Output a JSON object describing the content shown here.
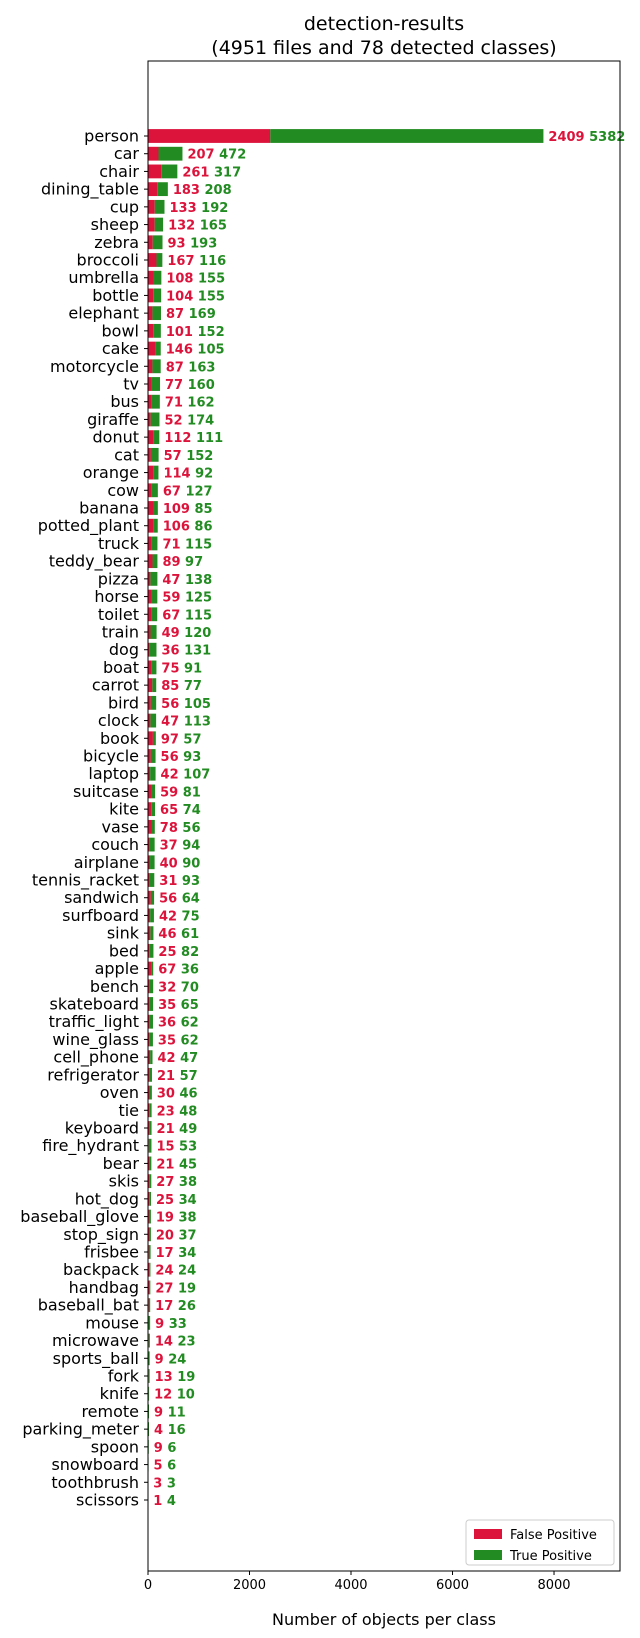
{
  "chart_data": {
    "type": "bar",
    "orientation": "horizontal",
    "stacked": true,
    "title": "detection-results",
    "subtitle": "(4951 files and 78 detected classes)",
    "xlabel": "Number of objects per class",
    "ylabel": "",
    "xlim": [
      0,
      9300
    ],
    "x_ticks": [
      0,
      2000,
      4000,
      6000,
      8000
    ],
    "grid": false,
    "legend_position": "lower-right",
    "colors": {
      "false_positive": "#dc143c",
      "true_positive": "#228b22"
    },
    "series": [
      {
        "name": "False Positive",
        "color": "#dc143c"
      },
      {
        "name": "True Positive",
        "color": "#228b22"
      }
    ],
    "categories": [
      "person",
      "car",
      "chair",
      "dining_table",
      "cup",
      "sheep",
      "zebra",
      "broccoli",
      "umbrella",
      "bottle",
      "elephant",
      "bowl",
      "cake",
      "motorcycle",
      "tv",
      "bus",
      "giraffe",
      "donut",
      "cat",
      "orange",
      "cow",
      "banana",
      "potted_plant",
      "truck",
      "teddy_bear",
      "pizza",
      "horse",
      "toilet",
      "train",
      "dog",
      "boat",
      "carrot",
      "bird",
      "clock",
      "book",
      "bicycle",
      "laptop",
      "suitcase",
      "kite",
      "vase",
      "couch",
      "airplane",
      "tennis_racket",
      "sandwich",
      "surfboard",
      "sink",
      "bed",
      "apple",
      "bench",
      "skateboard",
      "traffic_light",
      "wine_glass",
      "cell_phone",
      "refrigerator",
      "oven",
      "tie",
      "keyboard",
      "fire_hydrant",
      "bear",
      "skis",
      "hot_dog",
      "baseball_glove",
      "stop_sign",
      "frisbee",
      "backpack",
      "handbag",
      "baseball_bat",
      "mouse",
      "microwave",
      "sports_ball",
      "fork",
      "knife",
      "remote",
      "parking_meter",
      "spoon",
      "snowboard",
      "toothbrush",
      "scissors"
    ],
    "false_positive": [
      2409,
      207,
      261,
      183,
      133,
      132,
      93,
      167,
      108,
      104,
      87,
      101,
      146,
      87,
      77,
      71,
      52,
      112,
      57,
      114,
      67,
      109,
      106,
      71,
      89,
      47,
      59,
      67,
      49,
      36,
      75,
      85,
      56,
      47,
      97,
      56,
      42,
      59,
      65,
      78,
      37,
      40,
      31,
      56,
      42,
      46,
      25,
      67,
      32,
      35,
      36,
      35,
      42,
      21,
      30,
      23,
      21,
      15,
      21,
      27,
      25,
      19,
      20,
      17,
      24,
      27,
      17,
      9,
      14,
      9,
      13,
      12,
      9,
      4,
      9,
      5,
      3,
      1
    ],
    "true_positive": [
      5382,
      472,
      317,
      208,
      192,
      165,
      193,
      116,
      155,
      155,
      169,
      152,
      105,
      163,
      160,
      162,
      174,
      111,
      152,
      92,
      127,
      85,
      86,
      115,
      97,
      138,
      125,
      115,
      120,
      131,
      91,
      77,
      105,
      113,
      57,
      93,
      107,
      81,
      74,
      56,
      94,
      90,
      93,
      64,
      75,
      61,
      82,
      36,
      70,
      65,
      62,
      62,
      47,
      57,
      46,
      48,
      49,
      53,
      45,
      38,
      34,
      38,
      37,
      34,
      24,
      19,
      26,
      33,
      23,
      24,
      19,
      10,
      11,
      16,
      6,
      6,
      3,
      4
    ]
  }
}
